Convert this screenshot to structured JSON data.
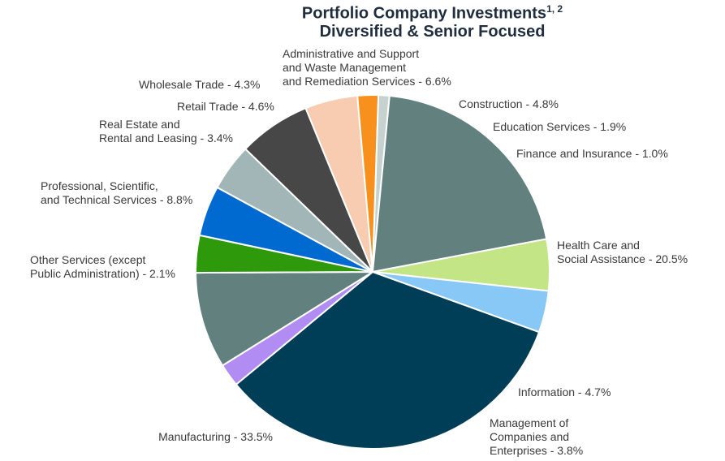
{
  "chart_data": {
    "type": "pie",
    "title": "Portfolio Company Investments",
    "title_sup": "1, 2",
    "subtitle": "Diversified & Senior Focused",
    "slices": [
      {
        "label": "Administrative and Support\nand Waste Management\nand Remediation Services  -  6.6%",
        "value": 6.6,
        "color": "#474747"
      },
      {
        "label": "Construction  -  4.8%",
        "value": 4.8,
        "color": "#f7ccb0"
      },
      {
        "label": "Education Services  -  1.9%",
        "value": 1.9,
        "color": "#f8901e"
      },
      {
        "label": "Finance and Insurance  -  1.0%",
        "value": 1.0,
        "color": "#c6d2d0"
      },
      {
        "label": "Health Care and\nSocial Assistance  -  20.5%",
        "value": 20.5,
        "color": "#62817e"
      },
      {
        "label": "Information  -  4.7%",
        "value": 4.7,
        "color": "#c4e585"
      },
      {
        "label": "Management of\nCompanies and\nEnterprises  -  3.8%",
        "value": 3.8,
        "color": "#88c8f7"
      },
      {
        "label": "Manufacturing  -  33.5%",
        "value": 33.5,
        "color": "#003d56"
      },
      {
        "label": "Other Services (except\nPublic Administration)  -  2.1%",
        "value": 2.1,
        "color": "#b18cf2"
      },
      {
        "label": "Professional, Scientific,\nand Technical Services  -  8.8%",
        "value": 8.8,
        "color": "#62817e"
      },
      {
        "label": "Real Estate and\nRental and Leasing  -  3.4%",
        "value": 3.4,
        "color": "#2e9a0b"
      },
      {
        "label": "Retail Trade  -  4.6%",
        "value": 4.6,
        "color": "#006ad0"
      },
      {
        "label": "Wholesale Trade  -  4.3%",
        "value": 4.3,
        "color": "#a2b6b7"
      }
    ]
  }
}
